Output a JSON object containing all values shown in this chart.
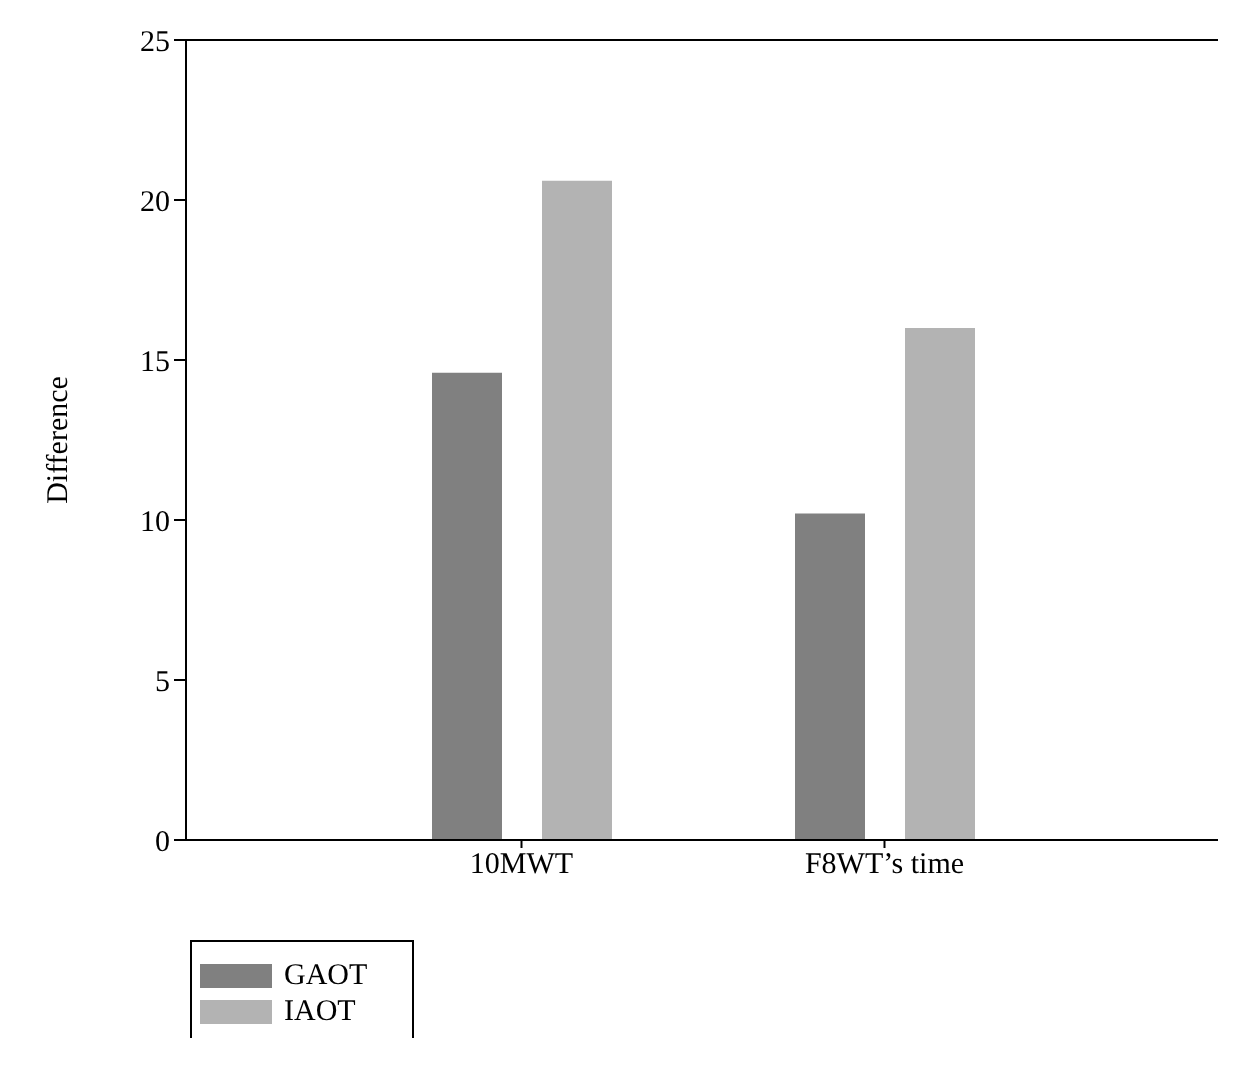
{
  "chart_data": {
    "type": "bar",
    "ylabel": "Difference",
    "categories": [
      "10MWT",
      "F8WT’s time"
    ],
    "series": [
      {
        "name": "GAOT",
        "color": "#808080",
        "values": [
          14.6,
          10.2
        ]
      },
      {
        "name": "IAOT",
        "color": "#b3b3b3",
        "values": [
          20.6,
          16.0
        ]
      }
    ],
    "ylim": [
      0,
      25
    ],
    "yticks": [
      0,
      5,
      10,
      15,
      20,
      25
    ],
    "legend": "bottom left"
  }
}
